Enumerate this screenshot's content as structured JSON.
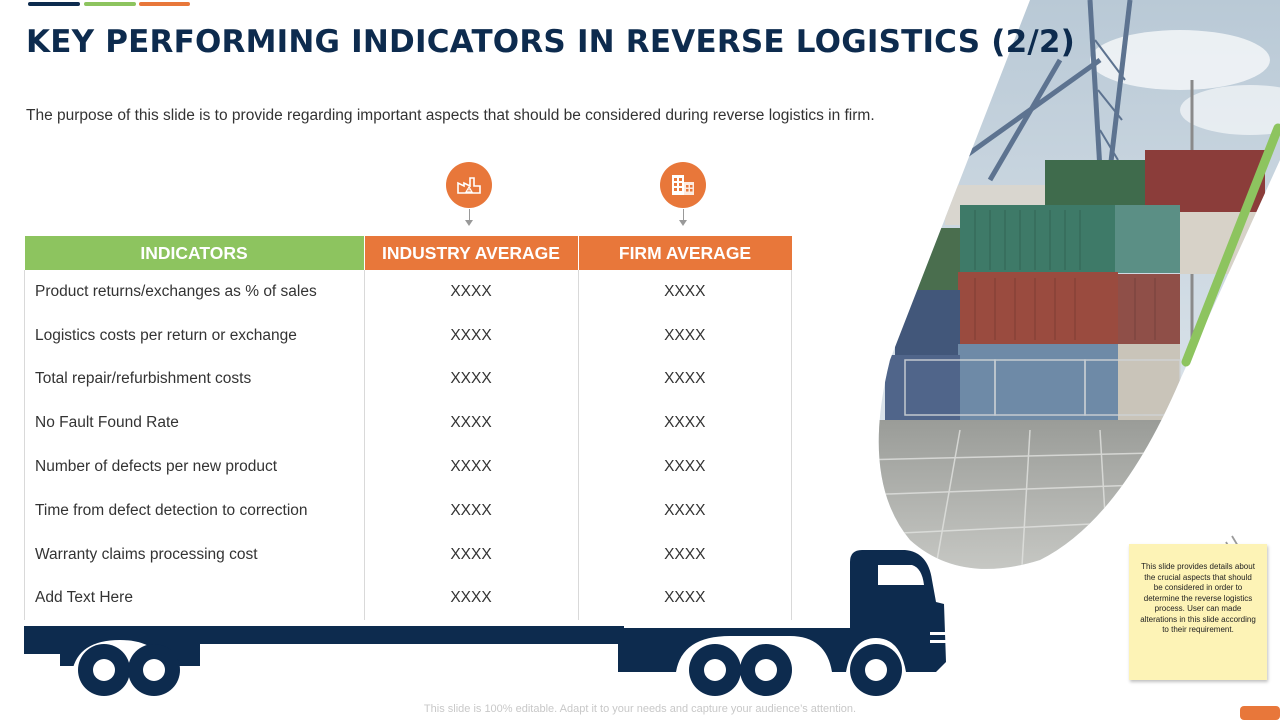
{
  "colors": {
    "navy": "#0d2b4e",
    "green": "#8dc45f",
    "orange": "#e8773a",
    "note": "#fdf3b6"
  },
  "slide": {
    "title": "KEY PERFORMING INDICATORS IN REVERSE LOGISTICS (2/2)",
    "subtitle": "The purpose of this slide is to provide regarding important aspects that should be considered during reverse logistics in firm.",
    "footer": "This slide is 100% editable. Adapt it to your needs and capture your audience’s attention."
  },
  "icons": {
    "industry": "factory-icon",
    "firm": "office-building-icon"
  },
  "table": {
    "headers": {
      "indicators": "INDICATORS",
      "industry": "INDUSTRY AVERAGE",
      "firm": "FIRM AVERAGE"
    },
    "rows": [
      {
        "label": "Product returns/exchanges  as % of sales",
        "industry": "XXXX",
        "firm": "XXXX"
      },
      {
        "label": "Logistics costs per return  or exchange",
        "industry": "XXXX",
        "firm": "XXXX"
      },
      {
        "label": "Total repair/refurbishment  costs",
        "industry": "XXXX",
        "firm": "XXXX"
      },
      {
        "label": "No Fault Found Rate",
        "industry": "XXXX",
        "firm": "XXXX"
      },
      {
        "label": "Number of defects per new product",
        "industry": "XXXX",
        "firm": "XXXX"
      },
      {
        "label": "Time from defect detection to correction",
        "industry": "XXXX",
        "firm": "XXXX"
      },
      {
        "label": "Warranty  claims processing cost",
        "industry": "XXXX",
        "firm": "XXXX"
      },
      {
        "label": "Add Text Here",
        "industry": "XXXX",
        "firm": "XXXX"
      }
    ]
  },
  "note": {
    "text": "This slide provides details about the crucial aspects that should be considered in order to determine the reverse logistics process. User can made alterations in this slide according to their requirement."
  }
}
